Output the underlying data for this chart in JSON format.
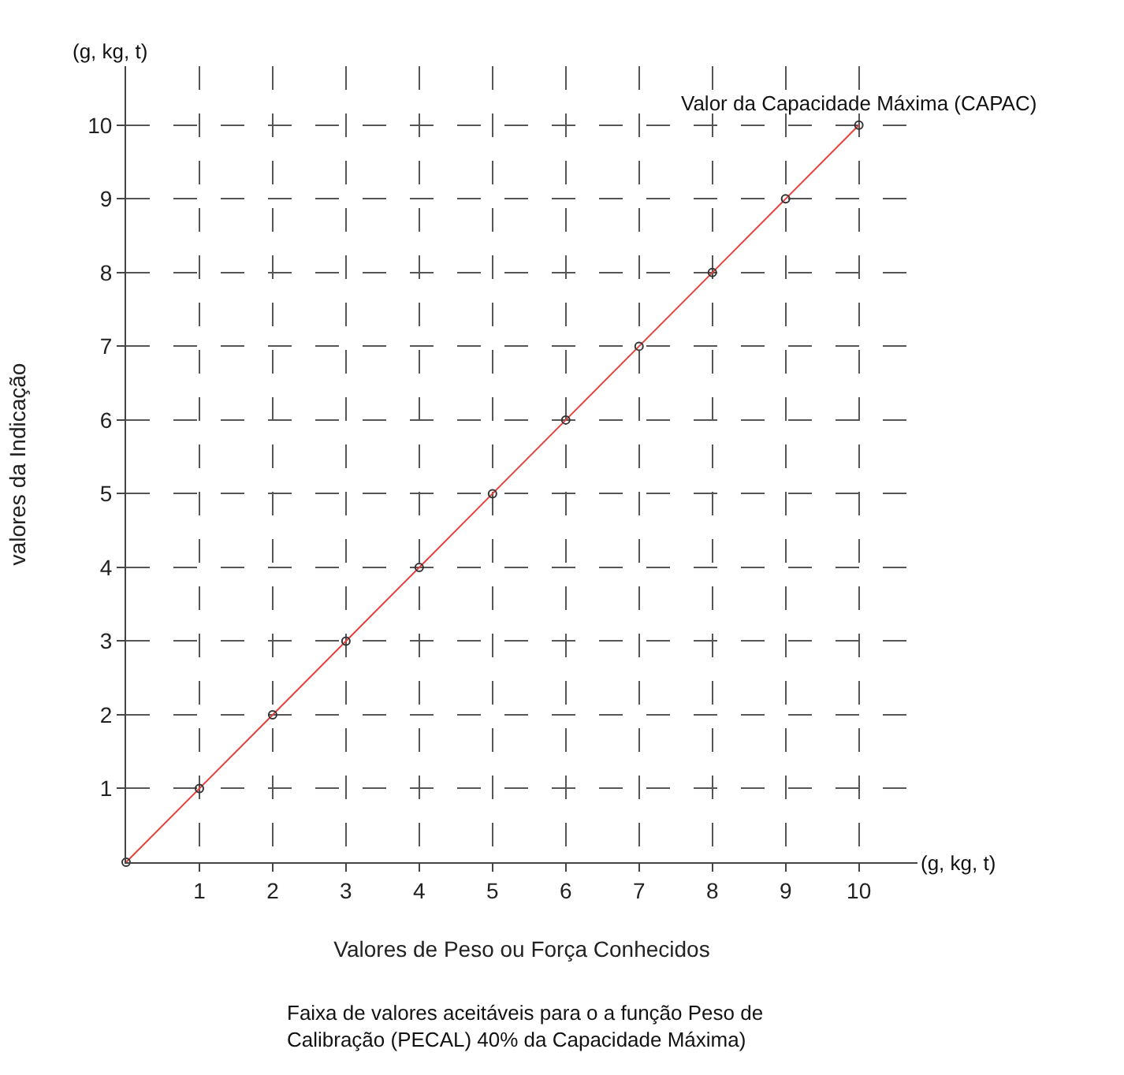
{
  "chart_data": {
    "type": "line",
    "xlabel": "Valores de Peso ou Força Conhecidos",
    "ylabel": "valores da Indicação",
    "x": [
      0,
      1,
      2,
      3,
      4,
      5,
      6,
      7,
      8,
      9,
      10
    ],
    "series": [
      {
        "color": "#e8413c",
        "values": [
          0,
          1,
          2,
          3,
          4,
          5,
          6,
          7,
          8,
          9,
          10
        ]
      }
    ],
    "xlim": [
      0,
      10.8
    ],
    "ylim": [
      0,
      10.8
    ],
    "xticks": [
      1,
      2,
      3,
      4,
      5,
      6,
      7,
      8,
      9,
      10
    ],
    "yticks": [
      1,
      2,
      3,
      4,
      5,
      6,
      7,
      8,
      9,
      10
    ],
    "grid": true,
    "marker": "circle",
    "line_style": "solid",
    "annotations": [
      {
        "text": "Valor da Capacidade Máxima (CAPAC)",
        "x": 10,
        "y": 10
      },
      "(g, kg, t)",
      "(g, kg, t)",
      "Faixa de valores aceitáveis para o a função Peso de Calibração (PECAL) 40% da Capacidade Máxima)"
    ]
  }
}
